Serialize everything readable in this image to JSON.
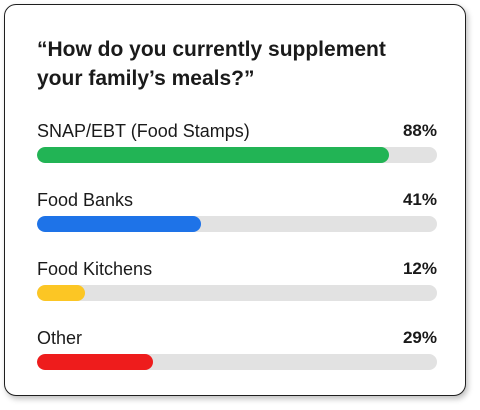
{
  "chart_data": {
    "type": "bar",
    "orientation": "horizontal",
    "title": "“How do you currently supplement your family’s meals?”",
    "categories": [
      "SNAP/EBT (Food Stamps)",
      "Food Banks",
      "Food Kitchens",
      "Other"
    ],
    "values": [
      88,
      41,
      12,
      29
    ],
    "value_labels": [
      "88%",
      "41%",
      "12%",
      "29%"
    ],
    "colors": [
      "#22b455",
      "#1e73e8",
      "#fcc624",
      "#ee1c1c"
    ],
    "track_color": "#e2e2e2",
    "xlim": [
      0,
      100
    ],
    "grid": false,
    "legend": "none"
  }
}
